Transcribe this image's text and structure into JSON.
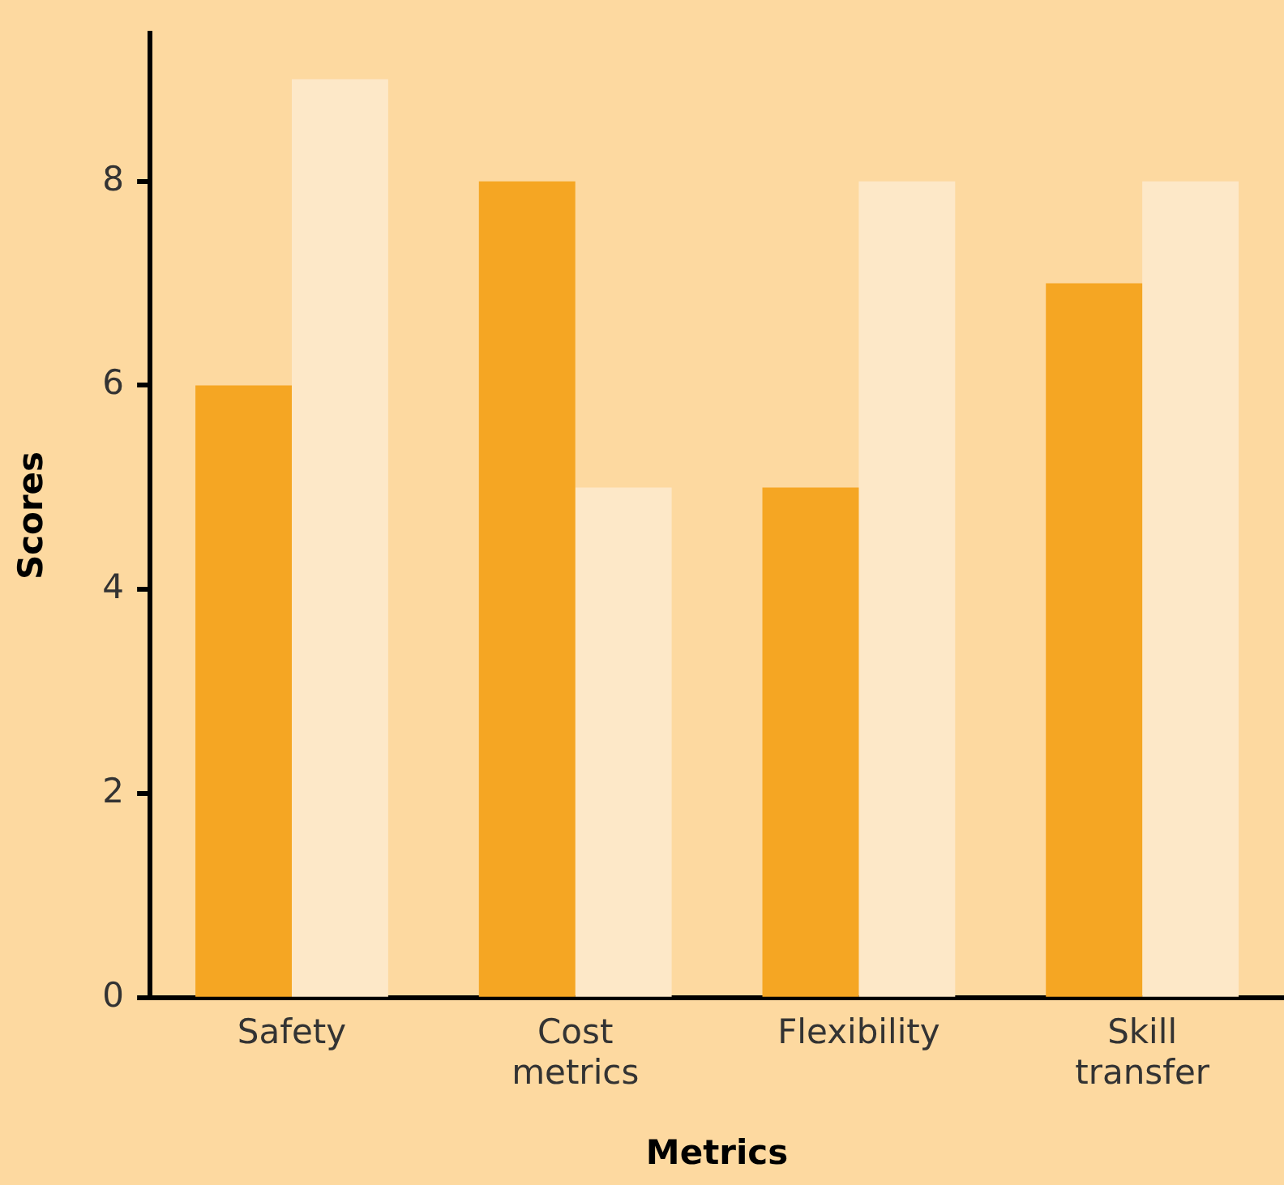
{
  "chart_data": {
    "type": "bar",
    "xlabel": "Metrics",
    "ylabel": "Scores",
    "categories": [
      "Safety",
      "Cost metrics",
      "Flexibility",
      "Skill transfer"
    ],
    "series": [
      {
        "color": "#f5a623",
        "values": [
          6,
          8,
          5,
          7
        ]
      },
      {
        "color": "#fde8c8",
        "values": [
          9,
          5,
          8,
          8
        ]
      }
    ],
    "ylim": [
      0,
      9.45
    ],
    "yticks": [
      0,
      2,
      4,
      6,
      8
    ],
    "grid": false,
    "legend": false
  }
}
